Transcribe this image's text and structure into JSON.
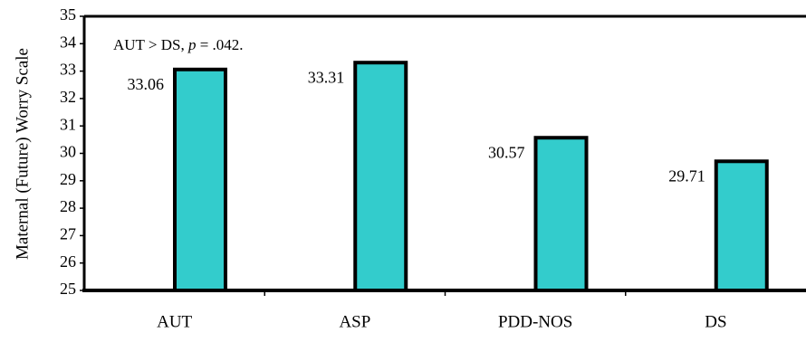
{
  "chart_data": {
    "type": "bar",
    "ylabel": "Maternal (Future) Worry Scale",
    "ylim": [
      25,
      35
    ],
    "y_ticks": [
      25,
      26,
      27,
      28,
      29,
      30,
      31,
      32,
      33,
      34,
      35
    ],
    "y_tick_labels": [
      "25",
      "26",
      "27",
      "28",
      "29",
      "30",
      "31",
      "32",
      "33",
      "34",
      "35"
    ],
    "categories": [
      "AUT",
      "ASP",
      "PDD-NOS",
      "DS"
    ],
    "values": [
      33.06,
      33.31,
      30.57,
      29.71
    ],
    "value_labels": [
      "33.06",
      "33.31",
      "30.57",
      "29.71"
    ],
    "bar_color": "#33CCCC",
    "bar_outline_color": "#000000",
    "grid": false,
    "legend": "none",
    "annotation": {
      "prefix": "AUT  >  DS, ",
      "stat": "p",
      "suffix": " = .042."
    }
  }
}
